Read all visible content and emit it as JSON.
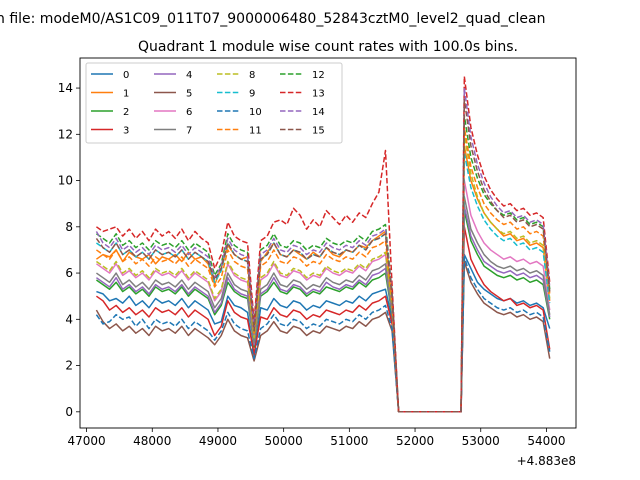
{
  "chart_data": {
    "type": "line",
    "suptitle": "n file: modeM0/AS1C09_011T07_9000006480_52843cztM0_level2_quad_clean",
    "title": "Quadrant 1 module wise count rates with 100.0s bins.",
    "xlabel": "",
    "ylabel": "",
    "x_offset_label": "+4.883e8",
    "xlim": [
      46900,
      54450
    ],
    "ylim": [
      -0.7,
      15.3
    ],
    "xticks": [
      47000,
      48000,
      49000,
      50000,
      51000,
      52000,
      53000,
      54000
    ],
    "yticks": [
      0,
      2,
      4,
      6,
      8,
      10,
      12,
      14
    ],
    "x": [
      47150,
      47250,
      47350,
      47450,
      47550,
      47650,
      47750,
      47850,
      47950,
      48050,
      48150,
      48250,
      48350,
      48450,
      48550,
      48650,
      48750,
      48850,
      48950,
      49050,
      49150,
      49250,
      49350,
      49450,
      49550,
      49650,
      49750,
      49850,
      49950,
      50050,
      50150,
      50250,
      50350,
      50450,
      50550,
      50650,
      50750,
      50850,
      50950,
      51050,
      51150,
      51250,
      51350,
      51450,
      51550,
      51650,
      51750,
      52700,
      52750,
      52850,
      52950,
      53050,
      53150,
      53250,
      53350,
      53450,
      53550,
      53650,
      53750,
      53850,
      53950,
      54050
    ],
    "gap_x": [
      51750,
      51800,
      52700
    ],
    "series": [
      {
        "name": "0",
        "color": "#1f77b4",
        "dash": false,
        "values": [
          5.2,
          5.1,
          4.8,
          4.9,
          4.7,
          5.0,
          4.6,
          4.8,
          4.5,
          4.9,
          4.7,
          4.8,
          4.6,
          4.9,
          4.5,
          4.8,
          4.6,
          4.4,
          3.8,
          3.9,
          5.0,
          4.6,
          4.5,
          4.3,
          2.4,
          4.5,
          4.4,
          4.9,
          4.6,
          4.5,
          4.8,
          4.7,
          4.4,
          4.6,
          4.5,
          4.8,
          4.7,
          4.6,
          4.8,
          4.7,
          5.0,
          4.8,
          5.1,
          5.2,
          5.3,
          4.0,
          0.0,
          0.0,
          6.8,
          6.2,
          5.6,
          5.3,
          5.1,
          4.9,
          4.8,
          4.9,
          4.7,
          4.8,
          4.6,
          4.7,
          4.5,
          3.6
        ]
      },
      {
        "name": "1",
        "color": "#ff7f0e",
        "dash": false,
        "values": [
          6.6,
          6.8,
          6.7,
          7.0,
          6.5,
          6.9,
          6.7,
          6.6,
          6.8,
          6.4,
          6.7,
          6.6,
          6.8,
          6.5,
          6.9,
          6.6,
          6.7,
          6.4,
          5.5,
          6.2,
          7.2,
          6.8,
          6.6,
          6.7,
          3.2,
          6.5,
          6.9,
          7.3,
          6.8,
          6.7,
          7.0,
          6.8,
          6.6,
          6.9,
          6.7,
          7.1,
          6.8,
          6.7,
          7.0,
          6.9,
          7.2,
          7.1,
          7.4,
          7.6,
          7.8,
          4.5,
          0.0,
          0.0,
          11.5,
          10.0,
          9.2,
          8.6,
          8.2,
          7.9,
          7.6,
          7.7,
          7.4,
          7.5,
          7.2,
          7.3,
          7.1,
          4.8
        ]
      },
      {
        "name": "2",
        "color": "#2ca02c",
        "dash": false,
        "values": [
          5.7,
          5.5,
          5.3,
          5.6,
          5.2,
          5.4,
          5.1,
          5.3,
          5.0,
          5.4,
          5.2,
          5.3,
          5.1,
          5.4,
          5.0,
          5.3,
          5.1,
          4.9,
          4.2,
          4.6,
          5.6,
          5.2,
          5.0,
          4.9,
          2.8,
          5.0,
          5.2,
          5.6,
          5.2,
          5.1,
          5.4,
          5.3,
          5.0,
          5.2,
          5.1,
          5.4,
          5.3,
          5.2,
          5.4,
          5.3,
          5.6,
          5.4,
          5.7,
          5.8,
          6.0,
          4.2,
          0.0,
          0.0,
          8.7,
          7.4,
          6.8,
          6.3,
          6.1,
          5.9,
          5.8,
          5.9,
          5.7,
          5.8,
          5.6,
          5.7,
          5.5,
          4.0
        ]
      },
      {
        "name": "3",
        "color": "#d62728",
        "dash": false,
        "values": [
          5.0,
          4.8,
          4.4,
          4.6,
          4.3,
          4.5,
          4.2,
          4.4,
          4.1,
          4.5,
          4.3,
          4.4,
          4.2,
          4.5,
          4.1,
          4.4,
          4.2,
          4.0,
          3.3,
          3.7,
          4.8,
          4.3,
          4.1,
          4.0,
          2.5,
          4.1,
          4.0,
          4.5,
          4.2,
          4.1,
          4.4,
          4.3,
          4.0,
          4.2,
          4.1,
          4.4,
          4.3,
          4.2,
          4.4,
          4.3,
          4.6,
          4.4,
          4.7,
          4.8,
          5.0,
          3.8,
          0.0,
          0.0,
          8.0,
          6.6,
          6.0,
          5.5,
          5.2,
          5.0,
          4.8,
          4.9,
          4.6,
          4.7,
          4.5,
          4.6,
          4.4,
          2.7
        ]
      },
      {
        "name": "4",
        "color": "#9467bd",
        "dash": false,
        "values": [
          5.8,
          5.6,
          5.4,
          5.8,
          5.3,
          5.5,
          5.2,
          5.4,
          5.1,
          5.5,
          5.3,
          5.4,
          5.2,
          5.5,
          5.1,
          5.4,
          5.2,
          5.0,
          4.3,
          4.7,
          5.8,
          5.3,
          5.1,
          5.0,
          2.9,
          5.1,
          5.3,
          5.8,
          5.3,
          5.2,
          5.5,
          5.4,
          5.1,
          5.3,
          5.2,
          5.6,
          5.4,
          5.3,
          5.5,
          5.4,
          5.7,
          5.5,
          5.9,
          6.0,
          6.2,
          4.3,
          0.0,
          0.0,
          8.9,
          7.6,
          7.0,
          6.5,
          6.3,
          6.1,
          6.0,
          6.1,
          5.9,
          6.0,
          5.8,
          5.9,
          5.7,
          4.1
        ]
      },
      {
        "name": "5",
        "color": "#8c564b",
        "dash": false,
        "values": [
          4.4,
          3.9,
          3.6,
          3.8,
          3.5,
          3.7,
          3.4,
          3.6,
          3.3,
          3.7,
          3.5,
          3.6,
          3.4,
          3.7,
          3.3,
          3.6,
          3.4,
          3.2,
          2.9,
          3.3,
          4.0,
          3.5,
          3.3,
          3.2,
          2.2,
          3.3,
          3.5,
          3.9,
          3.5,
          3.4,
          3.7,
          3.6,
          3.3,
          3.5,
          3.4,
          3.7,
          3.6,
          3.5,
          3.7,
          3.6,
          3.9,
          3.7,
          4.0,
          4.1,
          4.3,
          3.5,
          0.0,
          0.0,
          6.5,
          5.6,
          5.1,
          4.7,
          4.5,
          4.3,
          4.2,
          4.3,
          4.1,
          4.2,
          4.0,
          4.1,
          3.9,
          2.3
        ]
      },
      {
        "name": "6",
        "color": "#e377c2",
        "dash": false,
        "values": [
          6.4,
          6.2,
          6.0,
          6.4,
          5.9,
          6.1,
          5.8,
          6.0,
          5.7,
          6.1,
          5.9,
          6.0,
          5.8,
          6.1,
          5.7,
          6.0,
          5.8,
          5.6,
          4.8,
          5.2,
          6.4,
          5.9,
          5.7,
          5.6,
          3.1,
          5.7,
          5.9,
          6.4,
          5.9,
          5.8,
          6.1,
          6.0,
          5.7,
          5.9,
          5.8,
          6.2,
          6.0,
          5.9,
          6.1,
          6.0,
          6.3,
          6.1,
          6.5,
          6.6,
          6.8,
          4.5,
          0.0,
          0.0,
          10.0,
          8.5,
          7.8,
          7.3,
          7.0,
          6.8,
          6.6,
          6.7,
          6.5,
          6.6,
          6.4,
          6.5,
          6.3,
          4.4
        ]
      },
      {
        "name": "7",
        "color": "#7f7f7f",
        "dash": false,
        "values": [
          6.0,
          5.8,
          5.6,
          6.0,
          5.5,
          5.7,
          5.4,
          5.6,
          5.3,
          5.7,
          5.5,
          5.6,
          5.4,
          5.7,
          5.3,
          5.6,
          5.4,
          5.2,
          4.5,
          4.9,
          6.0,
          5.5,
          5.3,
          5.2,
          3.0,
          5.3,
          5.5,
          6.0,
          5.5,
          5.4,
          5.7,
          5.6,
          5.3,
          5.5,
          5.4,
          5.8,
          5.6,
          5.5,
          5.7,
          5.6,
          5.9,
          5.7,
          6.1,
          6.2,
          6.4,
          4.4,
          0.0,
          0.0,
          9.3,
          7.9,
          7.3,
          6.8,
          6.5,
          6.3,
          6.2,
          6.3,
          6.1,
          6.2,
          6.0,
          6.1,
          5.9,
          4.2
        ]
      },
      {
        "name": "8",
        "color": "#bcbd22",
        "dash": true,
        "values": [
          6.5,
          6.3,
          6.1,
          6.5,
          6.0,
          6.2,
          5.9,
          6.1,
          5.8,
          6.2,
          6.0,
          6.1,
          5.9,
          6.2,
          5.8,
          6.1,
          5.9,
          5.7,
          4.9,
          5.3,
          6.5,
          6.0,
          5.8,
          5.7,
          3.2,
          5.8,
          6.0,
          6.5,
          6.0,
          5.9,
          6.2,
          6.1,
          5.8,
          6.0,
          5.9,
          6.3,
          6.1,
          6.0,
          6.2,
          6.1,
          6.4,
          6.2,
          6.6,
          6.7,
          6.9,
          4.6,
          0.0,
          0.0,
          12.0,
          10.3,
          9.3,
          8.6,
          8.2,
          7.9,
          7.7,
          7.8,
          7.5,
          7.6,
          7.3,
          7.4,
          7.2,
          4.9
        ]
      },
      {
        "name": "9",
        "color": "#17becf",
        "dash": true,
        "values": [
          7.3,
          7.1,
          6.9,
          7.3,
          6.8,
          7.0,
          6.7,
          6.9,
          6.6,
          7.0,
          6.8,
          6.9,
          6.7,
          7.0,
          6.6,
          6.9,
          6.7,
          6.5,
          5.6,
          6.1,
          7.3,
          6.8,
          6.6,
          6.5,
          3.5,
          6.6,
          6.8,
          7.3,
          6.8,
          6.7,
          7.0,
          6.9,
          6.6,
          6.8,
          6.7,
          7.1,
          6.9,
          6.8,
          7.0,
          6.9,
          7.2,
          7.0,
          7.4,
          7.5,
          7.7,
          5.0,
          0.0,
          0.0,
          11.2,
          9.7,
          8.9,
          8.3,
          7.9,
          7.6,
          7.4,
          7.5,
          7.2,
          7.3,
          7.0,
          7.1,
          6.9,
          4.7
        ]
      },
      {
        "name": "10",
        "color": "#1f77b4",
        "dash": true,
        "values": [
          4.2,
          3.8,
          3.9,
          4.2,
          4.0,
          4.1,
          3.7,
          4.0,
          3.6,
          4.0,
          3.8,
          3.9,
          3.7,
          4.0,
          3.6,
          3.9,
          3.7,
          3.5,
          3.1,
          3.5,
          4.3,
          3.8,
          3.6,
          3.5,
          2.3,
          3.6,
          3.8,
          4.2,
          3.8,
          3.7,
          4.0,
          3.9,
          3.6,
          3.8,
          3.7,
          4.0,
          3.9,
          3.8,
          4.0,
          3.9,
          4.2,
          4.0,
          4.3,
          4.4,
          4.6,
          3.6,
          0.0,
          0.0,
          6.7,
          5.8,
          5.3,
          4.9,
          4.7,
          4.5,
          4.4,
          4.5,
          4.3,
          4.4,
          4.2,
          4.3,
          4.1,
          2.6
        ]
      },
      {
        "name": "11",
        "color": "#ff7f0e",
        "dash": true,
        "values": [
          7.0,
          6.8,
          6.6,
          7.0,
          6.5,
          6.7,
          6.4,
          6.6,
          6.3,
          6.7,
          6.5,
          6.6,
          6.4,
          6.7,
          6.3,
          6.6,
          6.4,
          6.2,
          5.4,
          5.8,
          7.0,
          6.5,
          6.3,
          6.2,
          3.4,
          6.3,
          6.5,
          7.0,
          6.5,
          6.4,
          6.7,
          6.6,
          6.3,
          6.5,
          6.4,
          6.8,
          6.6,
          6.5,
          6.7,
          6.6,
          6.9,
          6.7,
          7.1,
          7.2,
          7.4,
          4.8,
          0.0,
          0.0,
          12.3,
          10.6,
          9.7,
          9.0,
          8.6,
          8.3,
          8.1,
          8.2,
          7.9,
          8.0,
          7.7,
          7.8,
          7.6,
          5.1
        ]
      },
      {
        "name": "12",
        "color": "#2ca02c",
        "dash": true,
        "values": [
          7.7,
          7.5,
          7.3,
          7.7,
          7.2,
          7.4,
          7.1,
          7.3,
          7.0,
          7.4,
          7.2,
          7.3,
          7.1,
          7.4,
          7.0,
          7.3,
          7.1,
          6.9,
          5.9,
          6.4,
          7.7,
          7.2,
          7.0,
          6.9,
          3.7,
          7.0,
          7.2,
          7.7,
          7.2,
          7.1,
          7.4,
          7.3,
          7.0,
          7.2,
          7.1,
          7.5,
          7.3,
          7.2,
          7.4,
          7.3,
          7.6,
          7.4,
          7.8,
          7.9,
          8.1,
          5.2,
          0.0,
          0.0,
          12.8,
          11.0,
          10.1,
          9.4,
          9.0,
          8.7,
          8.5,
          8.6,
          8.3,
          8.4,
          8.1,
          8.2,
          8.0,
          5.3
        ]
      },
      {
        "name": "13",
        "color": "#d62728",
        "dash": true,
        "values": [
          8.0,
          7.8,
          7.9,
          8.0,
          7.6,
          7.9,
          7.5,
          7.8,
          7.4,
          7.9,
          7.6,
          7.8,
          7.5,
          7.9,
          7.4,
          7.8,
          7.5,
          7.3,
          6.2,
          6.8,
          8.2,
          7.6,
          7.4,
          7.3,
          3.9,
          7.4,
          7.6,
          8.2,
          8.3,
          8.1,
          8.8,
          8.5,
          7.9,
          8.3,
          8.0,
          8.7,
          8.4,
          8.1,
          8.5,
          8.2,
          8.6,
          8.4,
          9.0,
          9.5,
          11.3,
          5.5,
          0.0,
          0.0,
          14.5,
          12.3,
          11.1,
          10.2,
          9.6,
          9.2,
          8.9,
          9.0,
          8.7,
          8.8,
          8.5,
          8.6,
          8.4,
          5.6
        ]
      },
      {
        "name": "14",
        "color": "#9467bd",
        "dash": true,
        "values": [
          7.8,
          7.3,
          7.1,
          7.5,
          7.0,
          7.2,
          6.9,
          7.1,
          6.8,
          7.2,
          7.0,
          7.1,
          6.9,
          7.2,
          6.8,
          7.1,
          6.9,
          6.7,
          5.8,
          6.3,
          7.5,
          7.0,
          6.8,
          6.7,
          3.6,
          6.8,
          7.0,
          7.5,
          7.0,
          6.9,
          7.2,
          7.1,
          6.8,
          7.0,
          6.9,
          7.3,
          7.1,
          7.0,
          7.2,
          7.1,
          7.4,
          7.2,
          7.6,
          7.7,
          7.9,
          5.1,
          0.0,
          0.0,
          14.0,
          11.9,
          10.7,
          9.9,
          9.3,
          8.9,
          8.6,
          8.7,
          8.4,
          8.5,
          8.2,
          8.3,
          8.1,
          5.4
        ]
      },
      {
        "name": "15",
        "color": "#8c564b",
        "dash": true,
        "values": [
          7.5,
          7.1,
          6.9,
          7.3,
          6.8,
          7.0,
          6.7,
          6.9,
          6.6,
          7.0,
          6.8,
          6.9,
          6.7,
          7.0,
          6.6,
          6.9,
          6.7,
          6.5,
          5.7,
          6.2,
          7.3,
          6.8,
          6.6,
          6.5,
          3.5,
          6.6,
          6.8,
          7.3,
          6.8,
          6.7,
          7.0,
          6.9,
          6.6,
          6.8,
          6.7,
          7.1,
          6.9,
          6.8,
          7.0,
          6.9,
          7.2,
          7.0,
          7.4,
          7.5,
          7.7,
          5.0,
          0.0,
          0.0,
          13.5,
          11.5,
          10.4,
          9.6,
          9.1,
          8.7,
          8.4,
          8.5,
          8.2,
          8.3,
          8.0,
          8.1,
          7.9,
          5.2
        ]
      }
    ],
    "legend": {
      "location": "upper-left",
      "columns": 4
    }
  }
}
